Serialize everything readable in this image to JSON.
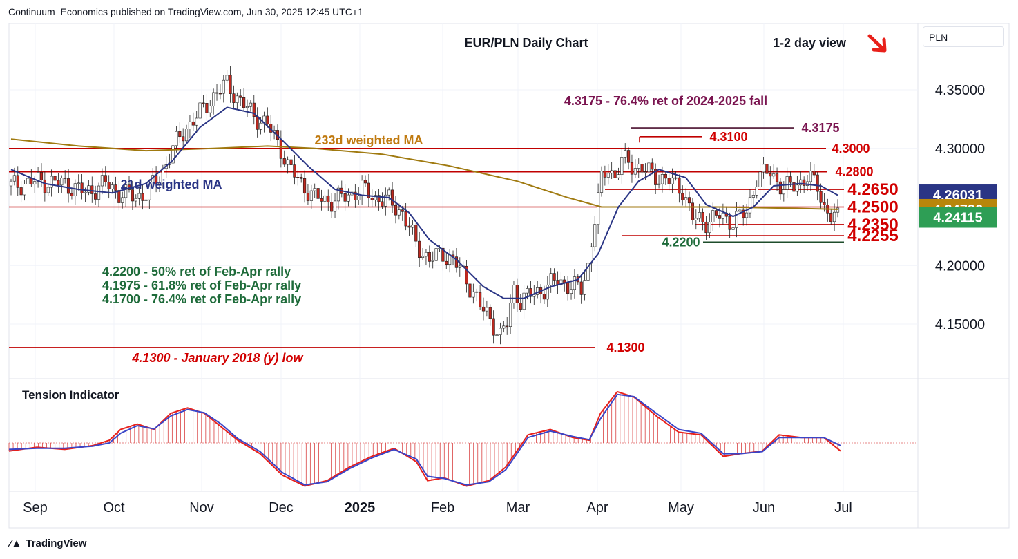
{
  "header": {
    "published": "Continuum_Economics published on TradingView.com, Jun 30, 2025 12:45 UTC+1"
  },
  "currency": "PLN",
  "brand": "TradingView",
  "colors": {
    "up": "#1e6b3a",
    "down": "#c0281f",
    "wma21": "#2a3585",
    "ma233": "#a07a10",
    "level": "#d10000",
    "support": "#1e6b3a",
    "fib": "#7a1450"
  },
  "chart_data": {
    "type": "candlestick",
    "title": "EUR/PLN Daily Chart",
    "view_label": "1-2 day view",
    "view_arrow": "down-right",
    "ylim": [
      4.11,
      4.38
    ],
    "yticks": [
      "4.35000",
      "4.30000",
      "4.25000",
      "4.20000",
      "4.15000"
    ],
    "ytick_values": [
      4.35,
      4.3,
      4.25,
      4.2,
      4.15
    ],
    "xticks": [
      "Sep",
      "Oct",
      "Nov",
      "Dec",
      "2025",
      "Feb",
      "Mar",
      "Apr",
      "May",
      "Jun",
      "Jul"
    ],
    "price_labels": [
      {
        "text": "4.26031",
        "value": 4.26031,
        "color": "#2a3585"
      },
      {
        "text": "4.24796",
        "value": 4.24796,
        "color": "#b8860b"
      },
      {
        "text": "4.24115",
        "value": 4.24115,
        "color": "#2e9e55"
      }
    ],
    "resistance_levels": [
      {
        "value": 4.3,
        "label": "4.3000"
      },
      {
        "value": 4.28,
        "label": "4.2800"
      },
      {
        "value": 4.265,
        "label": "4.2650"
      },
      {
        "value": 4.25,
        "label": "4.2500"
      },
      {
        "value": 4.235,
        "label": "4.2350"
      },
      {
        "value": 4.2255,
        "label": "4.2255"
      },
      {
        "value": 4.22,
        "label": "4.2200"
      },
      {
        "value": 4.31,
        "label": "4.3100"
      },
      {
        "value": 4.3175,
        "label": "4.3175"
      },
      {
        "value": 4.13,
        "label": "4.1300"
      }
    ],
    "annotations": {
      "fib_top": "4.3175 - 76.4% ret of 2024-2025 fall",
      "ma233": "233d weighted MA",
      "wma21": "21d weighted MA",
      "rally_1": "4.2200 - 50% ret of Feb-Apr rally",
      "rally_2": "4.1975 - 61.8% ret of Feb-Apr rally",
      "rally_3": "4.1700 - 76.4% ret of Feb-Apr rally",
      "low": "4.1300 - January 2018 (y) low"
    },
    "close_path": [
      [
        0,
        4.268
      ],
      [
        8,
        4.272
      ],
      [
        16,
        4.27
      ],
      [
        22,
        4.262
      ],
      [
        28,
        4.27
      ],
      [
        32,
        4.262
      ],
      [
        37,
        4.258
      ],
      [
        40,
        4.262
      ],
      [
        44,
        4.275
      ],
      [
        48,
        4.3
      ],
      [
        52,
        4.318
      ],
      [
        56,
        4.33
      ],
      [
        60,
        4.345
      ],
      [
        64,
        4.355
      ],
      [
        68,
        4.34
      ],
      [
        72,
        4.328
      ],
      [
        76,
        4.32
      ],
      [
        80,
        4.3
      ],
      [
        82,
        4.285
      ],
      [
        86,
        4.27
      ],
      [
        90,
        4.258
      ],
      [
        95,
        4.255
      ],
      [
        100,
        4.26
      ],
      [
        104,
        4.265
      ],
      [
        108,
        4.258
      ],
      [
        112,
        4.255
      ],
      [
        116,
        4.245
      ],
      [
        118,
        4.232
      ],
      [
        120,
        4.218
      ],
      [
        124,
        4.205
      ],
      [
        128,
        4.21
      ],
      [
        131,
        4.205
      ],
      [
        134,
        4.192
      ],
      [
        137,
        4.178
      ],
      [
        139,
        4.165
      ],
      [
        141,
        4.158
      ],
      [
        143,
        4.15
      ],
      [
        145,
        4.14
      ],
      [
        147,
        4.15
      ],
      [
        149,
        4.18
      ],
      [
        151,
        4.17
      ],
      [
        154,
        4.175
      ],
      [
        158,
        4.18
      ],
      [
        162,
        4.188
      ],
      [
        166,
        4.182
      ],
      [
        169,
        4.18
      ],
      [
        171,
        4.2
      ],
      [
        173,
        4.24
      ],
      [
        175,
        4.272
      ],
      [
        177,
        4.285
      ],
      [
        179,
        4.275
      ],
      [
        181,
        4.29
      ],
      [
        185,
        4.285
      ],
      [
        190,
        4.278
      ],
      [
        195,
        4.272
      ],
      [
        199,
        4.265
      ],
      [
        202,
        4.24
      ],
      [
        206,
        4.238
      ],
      [
        210,
        4.242
      ],
      [
        214,
        4.238
      ],
      [
        218,
        4.245
      ],
      [
        221,
        4.275
      ],
      [
        225,
        4.28
      ],
      [
        229,
        4.265
      ],
      [
        233,
        4.27
      ],
      [
        236,
        4.275
      ],
      [
        239,
        4.268
      ],
      [
        241,
        4.25
      ],
      [
        243,
        4.242
      ],
      [
        245,
        4.24
      ]
    ],
    "wma21_path": [
      [
        0,
        4.282
      ],
      [
        10,
        4.27
      ],
      [
        20,
        4.265
      ],
      [
        30,
        4.262
      ],
      [
        40,
        4.27
      ],
      [
        48,
        4.29
      ],
      [
        56,
        4.318
      ],
      [
        64,
        4.335
      ],
      [
        72,
        4.33
      ],
      [
        80,
        4.308
      ],
      [
        88,
        4.285
      ],
      [
        96,
        4.265
      ],
      [
        104,
        4.26
      ],
      [
        112,
        4.258
      ],
      [
        118,
        4.245
      ],
      [
        124,
        4.222
      ],
      [
        132,
        4.205
      ],
      [
        140,
        4.182
      ],
      [
        146,
        4.172
      ],
      [
        152,
        4.172
      ],
      [
        160,
        4.182
      ],
      [
        168,
        4.188
      ],
      [
        174,
        4.21
      ],
      [
        180,
        4.25
      ],
      [
        186,
        4.272
      ],
      [
        192,
        4.282
      ],
      [
        200,
        4.275
      ],
      [
        206,
        4.252
      ],
      [
        214,
        4.242
      ],
      [
        220,
        4.25
      ],
      [
        226,
        4.268
      ],
      [
        234,
        4.27
      ],
      [
        240,
        4.268
      ],
      [
        245,
        4.26
      ]
    ],
    "ma233_path": [
      [
        0,
        4.308
      ],
      [
        20,
        4.302
      ],
      [
        40,
        4.298
      ],
      [
        60,
        4.3
      ],
      [
        76,
        4.302
      ],
      [
        90,
        4.3
      ],
      [
        110,
        4.295
      ],
      [
        130,
        4.285
      ],
      [
        150,
        4.272
      ],
      [
        165,
        4.258
      ],
      [
        175,
        4.25
      ],
      [
        190,
        4.25
      ],
      [
        210,
        4.25
      ],
      [
        230,
        4.249
      ],
      [
        245,
        4.248
      ]
    ],
    "indicator": {
      "title": "Tension Indicator",
      "zero": 0,
      "range": [
        -1.0,
        1.2
      ],
      "fast_path": [
        [
          0,
          -0.15
        ],
        [
          10,
          -0.08
        ],
        [
          20,
          -0.12
        ],
        [
          30,
          -0.05
        ],
        [
          36,
          0.05
        ],
        [
          40,
          0.25
        ],
        [
          46,
          0.35
        ],
        [
          52,
          0.25
        ],
        [
          58,
          0.55
        ],
        [
          64,
          0.65
        ],
        [
          70,
          0.55
        ],
        [
          76,
          0.3
        ],
        [
          82,
          0.05
        ],
        [
          90,
          -0.2
        ],
        [
          98,
          -0.6
        ],
        [
          106,
          -0.8
        ],
        [
          114,
          -0.7
        ],
        [
          122,
          -0.45
        ],
        [
          130,
          -0.25
        ],
        [
          138,
          -0.1
        ],
        [
          146,
          -0.35
        ],
        [
          150,
          -0.7
        ],
        [
          156,
          -0.65
        ],
        [
          164,
          -0.8
        ],
        [
          172,
          -0.7
        ],
        [
          178,
          -0.45
        ],
        [
          186,
          0.15
        ],
        [
          194,
          0.25
        ],
        [
          202,
          0.1
        ],
        [
          208,
          0.05
        ],
        [
          212,
          0.55
        ],
        [
          218,
          0.95
        ],
        [
          224,
          0.85
        ],
        [
          232,
          0.5
        ],
        [
          240,
          0.2
        ],
        [
          248,
          0.15
        ],
        [
          256,
          -0.25
        ],
        [
          262,
          -0.2
        ],
        [
          270,
          -0.15
        ],
        [
          276,
          0.15
        ],
        [
          284,
          0.1
        ],
        [
          292,
          0.1
        ],
        [
          298,
          -0.15
        ]
      ],
      "slow_path": [
        [
          0,
          -0.12
        ],
        [
          10,
          -0.1
        ],
        [
          20,
          -0.1
        ],
        [
          30,
          -0.06
        ],
        [
          36,
          0.0
        ],
        [
          40,
          0.18
        ],
        [
          46,
          0.32
        ],
        [
          52,
          0.26
        ],
        [
          58,
          0.5
        ],
        [
          64,
          0.62
        ],
        [
          70,
          0.56
        ],
        [
          76,
          0.35
        ],
        [
          82,
          0.08
        ],
        [
          90,
          -0.16
        ],
        [
          98,
          -0.55
        ],
        [
          106,
          -0.78
        ],
        [
          114,
          -0.72
        ],
        [
          122,
          -0.48
        ],
        [
          130,
          -0.28
        ],
        [
          138,
          -0.12
        ],
        [
          146,
          -0.3
        ],
        [
          150,
          -0.62
        ],
        [
          156,
          -0.66
        ],
        [
          164,
          -0.78
        ],
        [
          172,
          -0.72
        ],
        [
          178,
          -0.5
        ],
        [
          186,
          0.1
        ],
        [
          194,
          0.22
        ],
        [
          202,
          0.12
        ],
        [
          208,
          0.06
        ],
        [
          212,
          0.45
        ],
        [
          218,
          0.9
        ],
        [
          224,
          0.86
        ],
        [
          232,
          0.55
        ],
        [
          240,
          0.25
        ],
        [
          248,
          0.18
        ],
        [
          256,
          -0.2
        ],
        [
          262,
          -0.2
        ],
        [
          270,
          -0.16
        ],
        [
          276,
          0.1
        ],
        [
          284,
          0.1
        ],
        [
          292,
          0.1
        ],
        [
          298,
          -0.05
        ]
      ]
    }
  }
}
